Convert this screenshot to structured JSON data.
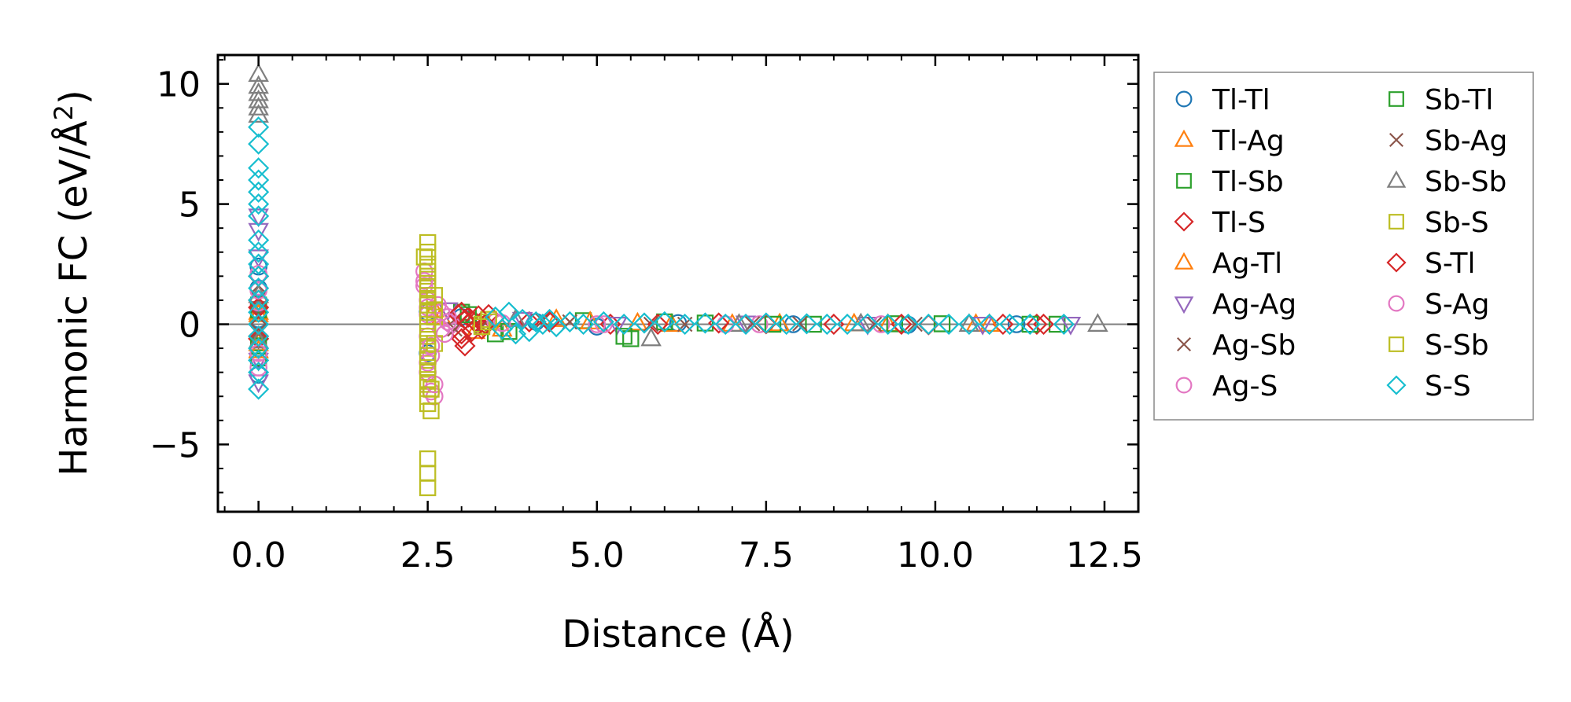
{
  "chart_data": {
    "type": "scatter",
    "title": "",
    "xlabel": "Distance (Å)",
    "ylabel_prefix": "Harmonic FC (eV/Å",
    "ylabel_sup": "2",
    "ylabel_suffix": ")",
    "xlim": [
      -0.6,
      13.0
    ],
    "ylim": [
      -7.8,
      11.2
    ],
    "x_ticks": [
      0.0,
      2.5,
      5.0,
      7.5,
      10.0,
      12.5
    ],
    "x_tick_labels": [
      "0.0",
      "2.5",
      "5.0",
      "7.5",
      "10.0",
      "12.5"
    ],
    "y_ticks": [
      -5,
      0,
      5,
      10
    ],
    "y_tick_labels": [
      "−5",
      "0",
      "5",
      "10"
    ],
    "zero_line": true,
    "legend_position": "outside-right",
    "series": [
      {
        "name": "Tl-Tl",
        "marker": "circle",
        "color": "#1f77b4",
        "points": [
          [
            0,
            0.2
          ],
          [
            0,
            1.5
          ],
          [
            0,
            -1.0
          ],
          [
            0,
            2.4
          ],
          [
            0,
            -2.1
          ],
          [
            2.5,
            0.5
          ],
          [
            2.5,
            -1.2
          ],
          [
            3.0,
            0.3
          ],
          [
            4.1,
            0.1
          ],
          [
            5.0,
            -0.1
          ],
          [
            6.2,
            0.05
          ],
          [
            7.9,
            0.0
          ],
          [
            9.6,
            -0.02
          ],
          [
            11.2,
            0.0
          ]
        ]
      },
      {
        "name": "Tl-Ag",
        "marker": "triangle-up",
        "color": "#ff7f0e",
        "points": [
          [
            0,
            1.2
          ],
          [
            0,
            -0.8
          ],
          [
            0,
            0.4
          ],
          [
            2.6,
            0.6
          ],
          [
            3.2,
            -0.3
          ],
          [
            4.4,
            0.2
          ],
          [
            5.6,
            0.05
          ],
          [
            7.0,
            0.0
          ],
          [
            8.8,
            0.02
          ],
          [
            10.6,
            0.0
          ]
        ]
      },
      {
        "name": "Tl-Sb",
        "marker": "square",
        "color": "#2ca02c",
        "points": [
          [
            0,
            0.8
          ],
          [
            0,
            -1.4
          ],
          [
            3.0,
            0.5
          ],
          [
            3.5,
            -0.4
          ],
          [
            4.8,
            0.15
          ],
          [
            5.5,
            -0.6
          ],
          [
            6.6,
            0.05
          ],
          [
            8.2,
            0.0
          ],
          [
            10.1,
            0.02
          ],
          [
            11.8,
            0.0
          ]
        ]
      },
      {
        "name": "Tl-S",
        "marker": "diamond",
        "color": "#d62728",
        "points": [
          [
            0,
            1.0
          ],
          [
            0,
            -0.6
          ],
          [
            0,
            2.0
          ],
          [
            3.0,
            0.5
          ],
          [
            3.0,
            -0.4
          ],
          [
            3.05,
            -0.9
          ],
          [
            3.1,
            0.3
          ],
          [
            3.2,
            0.1
          ],
          [
            3.3,
            -0.2
          ],
          [
            3.4,
            0.4
          ],
          [
            4.0,
            0.1
          ],
          [
            5.2,
            0.0
          ],
          [
            6.8,
            0.05
          ],
          [
            8.5,
            0.0
          ],
          [
            9.9,
            -0.02
          ],
          [
            11.0,
            0.0
          ],
          [
            11.5,
            0.0
          ]
        ]
      },
      {
        "name": "Ag-Tl",
        "marker": "triangle-up",
        "color": "#ff7f0e",
        "points": [
          [
            0,
            0.5
          ],
          [
            0,
            -1.1
          ],
          [
            2.7,
            0.3
          ],
          [
            3.6,
            -0.2
          ],
          [
            4.9,
            0.1
          ],
          [
            6.1,
            0.0
          ],
          [
            7.7,
            0.02
          ],
          [
            9.3,
            0.0
          ],
          [
            10.8,
            0.0
          ]
        ]
      },
      {
        "name": "Ag-Ag",
        "marker": "triangle-down",
        "color": "#9467bd",
        "points": [
          [
            0,
            4.5
          ],
          [
            0,
            3.9
          ],
          [
            0,
            2.8
          ],
          [
            0,
            -1.5
          ],
          [
            0,
            -2.4
          ],
          [
            2.8,
            0.6
          ],
          [
            3.9,
            0.2
          ],
          [
            5.3,
            0.0
          ],
          [
            7.2,
            0.05
          ],
          [
            9.0,
            0.0
          ],
          [
            10.7,
            0.0
          ],
          [
            12.0,
            0.0
          ]
        ]
      },
      {
        "name": "Ag-Sb",
        "marker": "x",
        "color": "#8c564b",
        "points": [
          [
            0,
            0.4
          ],
          [
            0,
            -0.4
          ],
          [
            0,
            1.6
          ],
          [
            2.9,
            0.2
          ],
          [
            3.3,
            -0.1
          ],
          [
            4.6,
            0.1
          ],
          [
            6.3,
            0.0
          ],
          [
            8.0,
            0.02
          ],
          [
            9.7,
            0.0
          ]
        ]
      },
      {
        "name": "Ag-S",
        "marker": "circle",
        "color": "#e377c2",
        "points": [
          [
            0,
            2.1
          ],
          [
            0,
            -1.8
          ],
          [
            0,
            0.9
          ],
          [
            2.45,
            2.2
          ],
          [
            2.45,
            1.6
          ],
          [
            2.5,
            1.0
          ],
          [
            2.5,
            0.4
          ],
          [
            2.5,
            -0.5
          ],
          [
            2.55,
            -1.3
          ],
          [
            2.5,
            -2.0
          ],
          [
            2.55,
            -2.8
          ],
          [
            2.6,
            -3.0
          ],
          [
            2.65,
            0.8
          ],
          [
            2.7,
            -0.2
          ],
          [
            2.8,
            0.3
          ],
          [
            2.85,
            0.0
          ],
          [
            3.5,
            0.1
          ],
          [
            5.0,
            0.0
          ],
          [
            7.4,
            0.0
          ],
          [
            9.2,
            0.0
          ]
        ]
      },
      {
        "name": "Sb-Tl",
        "marker": "square",
        "color": "#2ca02c",
        "points": [
          [
            0,
            0.6
          ],
          [
            0,
            -0.9
          ],
          [
            3.1,
            0.4
          ],
          [
            3.7,
            -0.3
          ],
          [
            5.4,
            -0.5
          ],
          [
            6.0,
            0.1
          ],
          [
            7.6,
            0.0
          ],
          [
            9.4,
            0.02
          ],
          [
            11.4,
            0.0
          ]
        ]
      },
      {
        "name": "Sb-Ag",
        "marker": "x",
        "color": "#8c564b",
        "points": [
          [
            0,
            0.3
          ],
          [
            0,
            -0.3
          ],
          [
            0,
            1.0
          ],
          [
            2.9,
            -0.2
          ],
          [
            4.2,
            0.15
          ],
          [
            5.8,
            0.0
          ],
          [
            7.3,
            0.02
          ],
          [
            9.1,
            0.0
          ]
        ]
      },
      {
        "name": "Sb-Sb",
        "marker": "triangle-up",
        "color": "#7f7f7f",
        "points": [
          [
            0,
            10.4
          ],
          [
            0,
            9.9
          ],
          [
            0,
            9.6
          ],
          [
            0,
            9.3
          ],
          [
            0,
            9.0
          ],
          [
            0,
            8.7
          ],
          [
            0,
            1.2
          ],
          [
            0,
            -0.7
          ],
          [
            3.8,
            0.2
          ],
          [
            5.8,
            -0.6
          ],
          [
            7.1,
            0.0
          ],
          [
            8.9,
            0.02
          ],
          [
            10.5,
            0.0
          ],
          [
            12.4,
            0.0
          ]
        ]
      },
      {
        "name": "Sb-S",
        "marker": "square",
        "color": "#bcbd22",
        "points": [
          [
            2.5,
            3.4
          ],
          [
            2.5,
            3.0
          ],
          [
            2.5,
            2.5
          ],
          [
            2.5,
            2.0
          ],
          [
            2.5,
            1.5
          ],
          [
            2.5,
            1.0
          ],
          [
            2.5,
            0.5
          ],
          [
            2.5,
            0.0
          ],
          [
            2.5,
            -0.5
          ],
          [
            2.5,
            -1.0
          ],
          [
            2.5,
            -1.5
          ],
          [
            2.5,
            -2.0
          ],
          [
            2.5,
            -2.5
          ],
          [
            2.5,
            -3.0
          ],
          [
            2.55,
            -3.6
          ],
          [
            2.5,
            -5.6
          ],
          [
            2.5,
            -6.2
          ],
          [
            2.5,
            -6.8
          ],
          [
            2.6,
            1.2
          ],
          [
            2.6,
            -0.8
          ],
          [
            2.6,
            0.3
          ],
          [
            3.3,
            0.0
          ],
          [
            3.4,
            0.2
          ]
        ]
      },
      {
        "name": "S-Tl",
        "marker": "diamond",
        "color": "#d62728",
        "points": [
          [
            0,
            0.7
          ],
          [
            0,
            -0.5
          ],
          [
            2.95,
            0.4
          ],
          [
            3.0,
            -0.6
          ],
          [
            3.05,
            0.2
          ],
          [
            3.15,
            -0.3
          ],
          [
            3.25,
            0.35
          ],
          [
            3.35,
            0.0
          ],
          [
            4.3,
            0.1
          ],
          [
            5.9,
            0.0
          ],
          [
            7.5,
            0.02
          ],
          [
            9.5,
            0.0
          ],
          [
            11.6,
            0.0
          ]
        ]
      },
      {
        "name": "S-Ag",
        "marker": "circle",
        "color": "#e377c2",
        "points": [
          [
            0,
            1.4
          ],
          [
            0,
            -1.2
          ],
          [
            2.45,
            1.8
          ],
          [
            2.5,
            0.7
          ],
          [
            2.55,
            -0.9
          ],
          [
            2.5,
            -1.6
          ],
          [
            2.6,
            -2.5
          ],
          [
            2.7,
            0.5
          ],
          [
            2.75,
            -0.4
          ],
          [
            2.8,
            0.1
          ],
          [
            3.6,
            0.05
          ],
          [
            5.1,
            0.0
          ],
          [
            6.9,
            0.0
          ]
        ]
      },
      {
        "name": "S-Sb",
        "marker": "square",
        "color": "#bcbd22",
        "points": [
          [
            2.45,
            2.8
          ],
          [
            2.5,
            2.2
          ],
          [
            2.5,
            1.7
          ],
          [
            2.5,
            1.2
          ],
          [
            2.5,
            0.8
          ],
          [
            2.5,
            -0.3
          ],
          [
            2.5,
            -0.8
          ],
          [
            2.5,
            -1.3
          ],
          [
            2.5,
            -1.8
          ],
          [
            2.5,
            -2.3
          ],
          [
            2.55,
            -2.7
          ],
          [
            2.5,
            -3.3
          ],
          [
            2.6,
            0.6
          ],
          [
            3.3,
            -0.1
          ],
          [
            3.4,
            0.1
          ]
        ]
      },
      {
        "name": "S-S",
        "marker": "diamond",
        "color": "#17becf",
        "points": [
          [
            0,
            8.2
          ],
          [
            0,
            7.5
          ],
          [
            0,
            6.5
          ],
          [
            0,
            6.0
          ],
          [
            0,
            5.5
          ],
          [
            0,
            5.0
          ],
          [
            0,
            4.5
          ],
          [
            0,
            3.5
          ],
          [
            0,
            3.0
          ],
          [
            0,
            2.5
          ],
          [
            0,
            2.0
          ],
          [
            0,
            1.5
          ],
          [
            0,
            1.0
          ],
          [
            0,
            0.5
          ],
          [
            0,
            0.0
          ],
          [
            0,
            -0.5
          ],
          [
            0,
            -1.0
          ],
          [
            0,
            -1.5
          ],
          [
            0,
            -2.0
          ],
          [
            0,
            -2.7
          ],
          [
            3.5,
            0.3
          ],
          [
            3.6,
            -0.2
          ],
          [
            3.7,
            0.5
          ],
          [
            3.8,
            -0.4
          ],
          [
            3.9,
            0.2
          ],
          [
            4.0,
            -0.3
          ],
          [
            4.1,
            0.1
          ],
          [
            4.2,
            0.0
          ],
          [
            4.3,
            0.2
          ],
          [
            4.4,
            -0.1
          ],
          [
            4.6,
            0.1
          ],
          [
            4.8,
            0.0
          ],
          [
            5.1,
            0.1
          ],
          [
            5.4,
            0.0
          ],
          [
            5.7,
            0.05
          ],
          [
            6.0,
            0.1
          ],
          [
            6.3,
            0.0
          ],
          [
            6.6,
            0.05
          ],
          [
            6.9,
            0.0
          ],
          [
            7.2,
            0.0
          ],
          [
            7.5,
            0.05
          ],
          [
            7.8,
            0.0
          ],
          [
            8.1,
            0.02
          ],
          [
            8.4,
            0.0
          ],
          [
            8.7,
            0.0
          ],
          [
            9.0,
            0.02
          ],
          [
            9.3,
            0.0
          ],
          [
            9.6,
            0.0
          ],
          [
            9.9,
            0.0
          ],
          [
            10.2,
            0.0
          ],
          [
            10.5,
            0.0
          ],
          [
            10.8,
            0.0
          ],
          [
            11.1,
            0.0
          ],
          [
            11.4,
            0.0
          ],
          [
            11.9,
            0.0
          ]
        ]
      }
    ]
  }
}
